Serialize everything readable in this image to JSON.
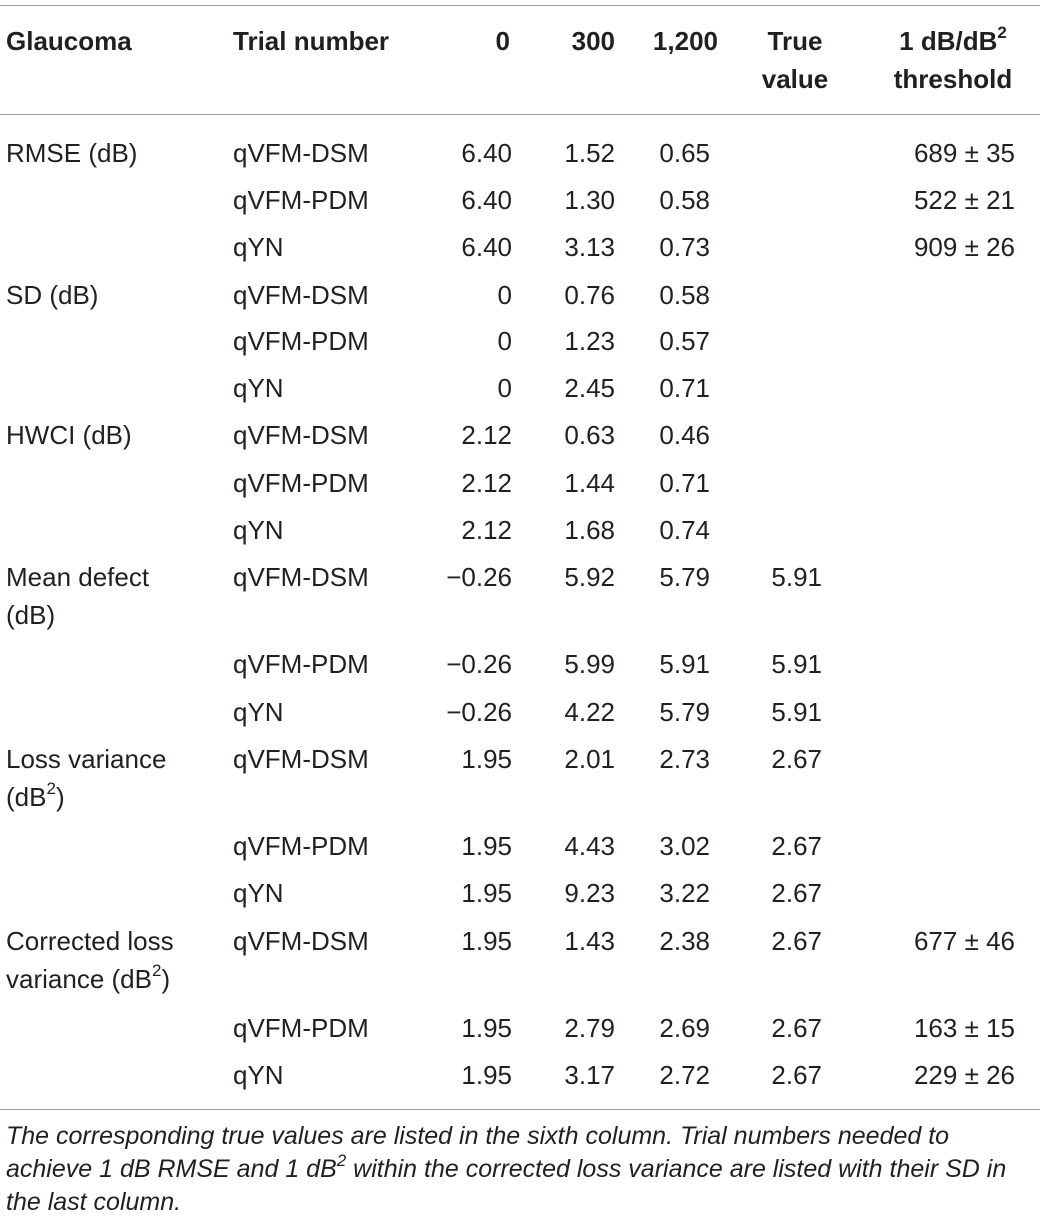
{
  "table": {
    "headers": {
      "col1": "Glaucoma",
      "col2": "Trial number",
      "col3": "0",
      "col4": "300",
      "col5": "1,200",
      "col6_line1": "True",
      "col6_line2": "value",
      "col7_line1_prefix": "1 dB/dB",
      "col7_line1_sup": "2",
      "col7_line2": "threshold"
    },
    "groups": [
      {
        "label_line1": "RMSE (dB)",
        "rows": [
          {
            "method": "qVFM-DSM",
            "t0": "6.40",
            "t300": "1.52",
            "t1200": "0.65",
            "true": "",
            "threshold": "689 ± 35"
          },
          {
            "method": "qVFM-PDM",
            "t0": "6.40",
            "t300": "1.30",
            "t1200": "0.58",
            "true": "",
            "threshold": "522 ± 21"
          },
          {
            "method": "qYN",
            "t0": "6.40",
            "t300": "3.13",
            "t1200": "0.73",
            "true": "",
            "threshold": "909 ± 26"
          }
        ]
      },
      {
        "label_line1": "SD (dB)",
        "rows": [
          {
            "method": "qVFM-DSM",
            "t0": "0",
            "t300": "0.76",
            "t1200": "0.58",
            "true": "",
            "threshold": ""
          },
          {
            "method": "qVFM-PDM",
            "t0": "0",
            "t300": "1.23",
            "t1200": "0.57",
            "true": "",
            "threshold": ""
          },
          {
            "method": "qYN",
            "t0": "0",
            "t300": "2.45",
            "t1200": "0.71",
            "true": "",
            "threshold": ""
          }
        ]
      },
      {
        "label_line1": "HWCI (dB)",
        "rows": [
          {
            "method": "qVFM-DSM",
            "t0": "2.12",
            "t300": "0.63",
            "t1200": "0.46",
            "true": "",
            "threshold": ""
          },
          {
            "method": "qVFM-PDM",
            "t0": "2.12",
            "t300": "1.44",
            "t1200": "0.71",
            "true": "",
            "threshold": ""
          },
          {
            "method": "qYN",
            "t0": "2.12",
            "t300": "1.68",
            "t1200": "0.74",
            "true": "",
            "threshold": ""
          }
        ]
      },
      {
        "label_line1": "Mean defect",
        "label_line2": "(dB)",
        "rows": [
          {
            "method": "qVFM-DSM",
            "t0": "−0.26",
            "t300": "5.92",
            "t1200": "5.79",
            "true": "5.91",
            "threshold": ""
          },
          {
            "method": "qVFM-PDM",
            "t0": "−0.26",
            "t300": "5.99",
            "t1200": "5.91",
            "true": "5.91",
            "threshold": ""
          },
          {
            "method": "qYN",
            "t0": "−0.26",
            "t300": "4.22",
            "t1200": "5.79",
            "true": "5.91",
            "threshold": ""
          }
        ]
      },
      {
        "label_line1": "Loss variance",
        "label_line2_prefix": "(dB",
        "label_line2_sup": "2",
        "label_line2_suffix": ")",
        "rows": [
          {
            "method": "qVFM-DSM",
            "t0": "1.95",
            "t300": "2.01",
            "t1200": "2.73",
            "true": "2.67",
            "threshold": ""
          },
          {
            "method": "qVFM-PDM",
            "t0": "1.95",
            "t300": "4.43",
            "t1200": "3.02",
            "true": "2.67",
            "threshold": ""
          },
          {
            "method": "qYN",
            "t0": "1.95",
            "t300": "9.23",
            "t1200": "3.22",
            "true": "2.67",
            "threshold": ""
          }
        ]
      },
      {
        "label_line1": "Corrected loss",
        "label_line2_prefix": "variance (dB",
        "label_line2_sup": "2",
        "label_line2_suffix": ")",
        "rows": [
          {
            "method": "qVFM-DSM",
            "t0": "1.95",
            "t300": "1.43",
            "t1200": "2.38",
            "true": "2.67",
            "threshold": "677 ± 46"
          },
          {
            "method": "qVFM-PDM",
            "t0": "1.95",
            "t300": "2.79",
            "t1200": "2.69",
            "true": "2.67",
            "threshold": "163 ± 15"
          },
          {
            "method": "qYN",
            "t0": "1.95",
            "t300": "3.17",
            "t1200": "2.72",
            "true": "2.67",
            "threshold": "229 ± 26"
          }
        ]
      }
    ],
    "footnote": {
      "part1": "The corresponding true values are listed in the sixth column. Trial numbers needed to achieve 1 dB RMSE and 1 dB",
      "sup": "2",
      "part2": " within the corrected loss variance are listed with their SD in the last column."
    }
  }
}
